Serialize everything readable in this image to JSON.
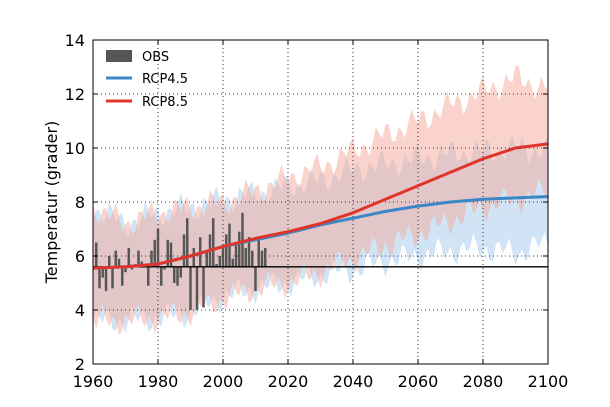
{
  "chart_data": {
    "type": "line",
    "ylabel": "Temperatur (grader)",
    "xlabel": "",
    "xlim": [
      1960,
      2100
    ],
    "ylim": [
      2,
      14
    ],
    "x_ticks": [
      "1960",
      "1980",
      "2000",
      "2020",
      "2040",
      "2060",
      "2080",
      "2100"
    ],
    "y_ticks": [
      "2",
      "4",
      "6",
      "8",
      "10",
      "12",
      "14"
    ],
    "grid": true,
    "legend_placement": "top-left",
    "baseline": 5.6,
    "obs": {
      "name": "OBS",
      "color": "#555555",
      "years": [
        1961,
        1962,
        1963,
        1964,
        1965,
        1966,
        1967,
        1968,
        1969,
        1970,
        1971,
        1972,
        1973,
        1974,
        1975,
        1976,
        1977,
        1978,
        1979,
        1980,
        1981,
        1982,
        1983,
        1984,
        1985,
        1986,
        1987,
        1988,
        1989,
        1990,
        1991,
        1992,
        1993,
        1994,
        1995,
        1996,
        1997,
        1998,
        1999,
        2000,
        2001,
        2002,
        2003,
        2004,
        2005,
        2006,
        2007,
        2008,
        2009,
        2010,
        2011,
        2012,
        2013
      ],
      "values": [
        6.5,
        4.8,
        5.2,
        4.7,
        6.0,
        4.8,
        6.2,
        5.9,
        4.9,
        5.4,
        6.3,
        5.5,
        5.7,
        6.2,
        5.8,
        5.6,
        4.9,
        6.2,
        6.6,
        7.0,
        4.9,
        5.5,
        6.6,
        6.5,
        5.0,
        4.9,
        5.2,
        6.8,
        7.4,
        4.0,
        6.3,
        4.0,
        6.7,
        4.1,
        6.2,
        6.8,
        7.4,
        5.7,
        6.0,
        6.4,
        6.8,
        7.2,
        5.9,
        6.5,
        6.9,
        7.6,
        6.3,
        6.7,
        6.2,
        4.7,
        6.6,
        6.2,
        6.3
      ]
    },
    "series": [
      {
        "name": "RCP4.5",
        "color": "#3a87c8",
        "band_color": "#a9cdee",
        "x": [
          1960,
          1970,
          1980,
          1990,
          2000,
          2010,
          2020,
          2030,
          2040,
          2050,
          2060,
          2070,
          2080,
          2090,
          2100
        ],
        "values": [
          5.55,
          5.6,
          5.7,
          6.0,
          6.35,
          6.6,
          6.85,
          7.15,
          7.4,
          7.65,
          7.85,
          8.0,
          8.1,
          8.15,
          8.2
        ],
        "band_upper": [
          7.8,
          7.2,
          7.6,
          7.8,
          8.1,
          8.3,
          8.6,
          8.8,
          9.2,
          9.4,
          9.6,
          9.8,
          9.9,
          10.0,
          9.9
        ],
        "band_lower": [
          3.6,
          3.6,
          3.7,
          3.9,
          4.5,
          4.8,
          5.0,
          5.3,
          5.5,
          5.8,
          6.0,
          6.2,
          6.3,
          6.1,
          6.5
        ]
      },
      {
        "name": "RCP8.5",
        "color": "#e0342a",
        "band_color": "#f4a89a",
        "x": [
          1960,
          1970,
          1980,
          1990,
          2000,
          2010,
          2020,
          2030,
          2040,
          2050,
          2060,
          2070,
          2080,
          2090,
          2100
        ],
        "values": [
          5.55,
          5.6,
          5.7,
          6.0,
          6.35,
          6.65,
          6.9,
          7.2,
          7.6,
          8.1,
          8.6,
          9.1,
          9.6,
          10.0,
          10.15
        ],
        "band_upper": [
          7.8,
          7.2,
          7.6,
          7.8,
          8.0,
          8.4,
          8.9,
          9.3,
          9.9,
          10.5,
          11.0,
          11.6,
          12.1,
          12.6,
          12.2
        ],
        "band_lower": [
          3.6,
          3.6,
          3.7,
          3.9,
          4.4,
          4.8,
          5.0,
          5.4,
          5.9,
          6.4,
          6.8,
          7.3,
          7.8,
          8.1,
          8.4
        ]
      }
    ]
  }
}
